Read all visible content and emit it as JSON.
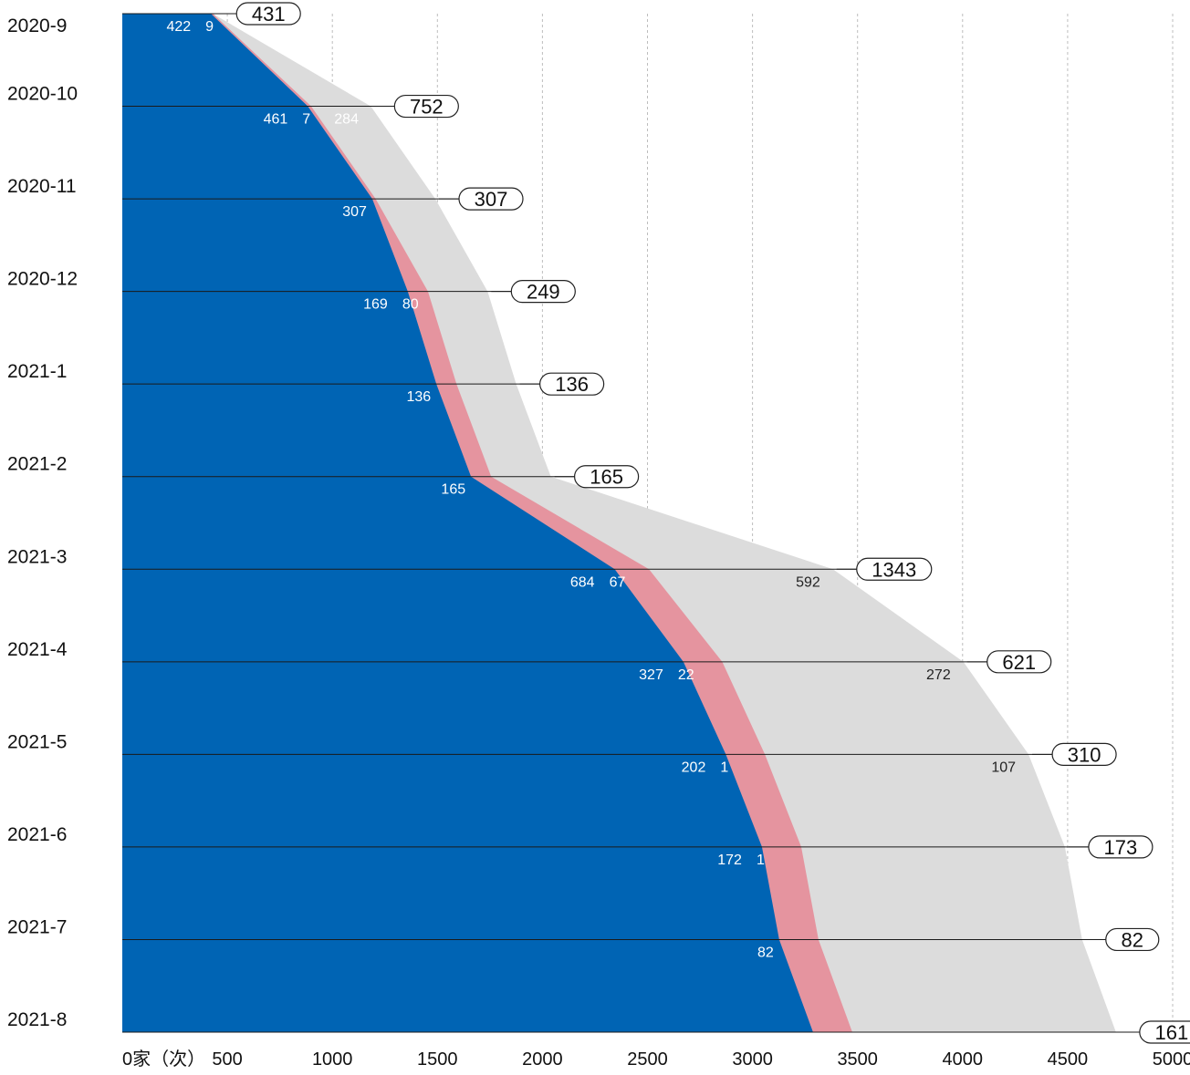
{
  "chart_data": {
    "type": "area",
    "orientation": "horizontal-cumulative",
    "x_unit_label": "家（次）",
    "xlim": [
      0,
      5000
    ],
    "x_ticks": [
      0,
      500,
      1000,
      1500,
      2000,
      2500,
      3000,
      3500,
      4000,
      4500,
      5000
    ],
    "x_tick_labels": [
      "0家（次）",
      "500",
      "1000",
      "1500",
      "2000",
      "2500",
      "3000",
      "3500",
      "4000",
      "4500",
      "5000"
    ],
    "grid": "vertical-dashed",
    "categories": [
      "2020-9",
      "2020-10",
      "2020-11",
      "2020-12",
      "2021-1",
      "2021-2",
      "2021-3",
      "2021-4",
      "2021-5",
      "2021-6",
      "2021-7",
      "2021-8"
    ],
    "series": [
      {
        "color": "#0064b4",
        "values": [
          422,
          461,
          307,
          169,
          136,
          165,
          684,
          327,
          202,
          172,
          82,
          161
        ],
        "labels": [
          "422",
          "461",
          "307",
          "169",
          "136",
          "165",
          "684",
          "327",
          "202",
          "172",
          "82",
          "161"
        ]
      },
      {
        "color": "#e5949f",
        "values": [
          9,
          7,
          0,
          80,
          0,
          0,
          67,
          22,
          1,
          1,
          0,
          0
        ],
        "labels": [
          "9",
          "7",
          "",
          "80",
          "",
          "",
          "67",
          "22",
          "1",
          "1",
          "",
          ""
        ]
      },
      {
        "color": "#dcdcdc",
        "values": [
          0,
          284,
          0,
          0,
          0,
          0,
          592,
          272,
          107,
          0,
          0,
          0
        ],
        "labels": [
          "",
          "284",
          "",
          "",
          "",
          "",
          "592",
          "272",
          "107",
          "",
          "",
          ""
        ]
      }
    ],
    "totals": [
      431,
      752,
      307,
      249,
      136,
      165,
      1343,
      621,
      310,
      173,
      82,
      161
    ]
  }
}
